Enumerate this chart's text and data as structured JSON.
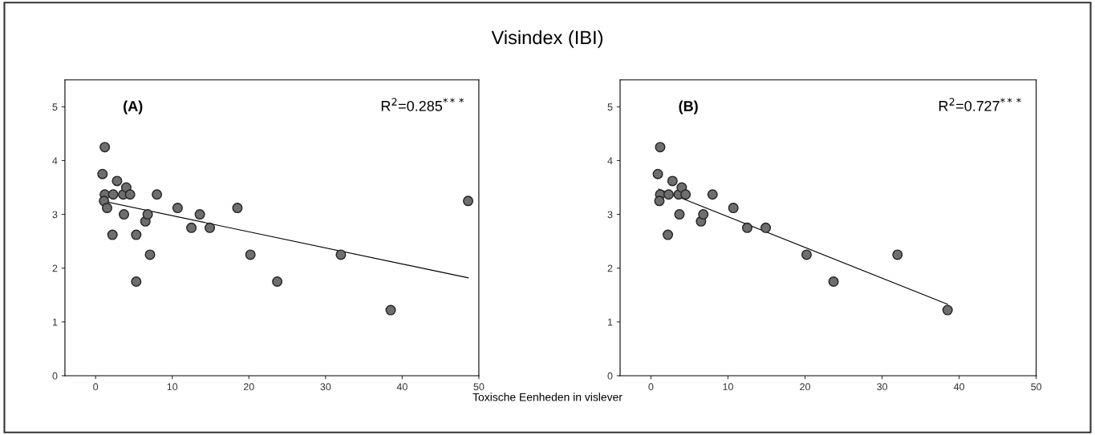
{
  "chart_data": [
    {
      "type": "scatter",
      "title": "Visindex (IBI)",
      "xlabel": "Toxische Eenheden in vislever",
      "annotations": [
        "(A)",
        "R$^{2}$=0.285$^{***}$"
      ],
      "xlim": [
        -4,
        50
      ],
      "ylim": [
        0,
        5.5
      ],
      "xticks": [
        0,
        10,
        20,
        30,
        40,
        50
      ],
      "yticks": [
        0,
        1,
        2,
        3,
        4,
        5
      ],
      "grid": false,
      "legend": false,
      "series": [
        {
          "marker": "circle",
          "color": "#6e6e6e",
          "x": [
            1.2,
            0.9,
            1.2,
            1.1,
            1.5,
            2.2,
            2.3,
            2.8,
            3.6,
            3.7,
            4.0,
            4.5,
            5.3,
            5.3,
            6.5,
            6.8,
            7.1,
            8.0,
            10.7,
            12.5,
            13.6,
            14.9,
            18.5,
            20.2,
            23.7,
            32.0,
            38.5,
            48.6
          ],
          "values": [
            4.25,
            3.75,
            3.37,
            3.25,
            3.12,
            2.62,
            3.37,
            3.62,
            3.37,
            3.0,
            3.5,
            3.37,
            2.62,
            1.75,
            2.87,
            3.0,
            2.25,
            3.37,
            3.12,
            2.75,
            3.0,
            2.75,
            3.12,
            2.25,
            1.75,
            2.25,
            1.22,
            3.25
          ]
        },
        {
          "type": "line",
          "marker": "none",
          "color": "#000000",
          "x": [
            1.5,
            48.6
          ],
          "values": [
            3.23,
            1.82
          ]
        }
      ]
    },
    {
      "type": "scatter",
      "annotations": [
        "(B)",
        "R$^{2}$=0.727$^{***}$"
      ],
      "xlim": [
        -4,
        50
      ],
      "ylim": [
        0,
        5.5
      ],
      "xticks": [
        0,
        10,
        20,
        30,
        40,
        50
      ],
      "yticks": [
        0,
        1,
        2,
        3,
        4,
        5
      ],
      "grid": false,
      "legend": false,
      "series": [
        {
          "marker": "circle",
          "color": "#6e6e6e",
          "x": [
            1.2,
            0.9,
            1.2,
            1.1,
            2.2,
            2.3,
            2.8,
            3.6,
            3.7,
            4.0,
            4.5,
            6.5,
            6.8,
            8.0,
            10.7,
            12.5,
            14.9,
            20.2,
            23.7,
            32.0,
            38.5
          ],
          "values": [
            4.25,
            3.75,
            3.37,
            3.25,
            2.62,
            3.37,
            3.62,
            3.37,
            3.0,
            3.5,
            3.37,
            2.87,
            3.0,
            3.37,
            3.12,
            2.75,
            2.75,
            2.25,
            1.75,
            2.25,
            1.22
          ]
        },
        {
          "type": "line",
          "marker": "none",
          "color": "#000000",
          "x": [
            1.0,
            38.5
          ],
          "values": [
            3.47,
            1.33
          ]
        }
      ]
    }
  ]
}
